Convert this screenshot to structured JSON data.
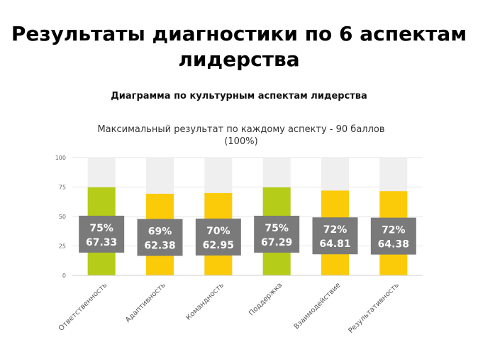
{
  "page": {
    "title_line1": "Результаты диагностики по 6 аспектам",
    "title_line2": "лидерства"
  },
  "chart_data": {
    "type": "bar",
    "title": "Диаграмма по культурным аспектам лидерства",
    "subtitle_line1": "Максимальный результат по каждому аспекту - 90 баллов",
    "subtitle_line2": "(100%)",
    "categories": [
      "Ответственность",
      "Адаптивность",
      "Командность",
      "Поддержка",
      "Взаимодействие",
      "Результативность"
    ],
    "values": [
      67.33,
      62.38,
      62.95,
      67.29,
      64.81,
      64.38
    ],
    "max_score": 90,
    "percent_labels": [
      "75%",
      "69%",
      "70%",
      "75%",
      "72%",
      "72%"
    ],
    "score_labels": [
      "67.33",
      "62.38",
      "62.95",
      "67.29",
      "64.81",
      "64.38"
    ],
    "ylim": [
      0,
      100
    ],
    "yticks": [
      "0",
      "25",
      "50",
      "75",
      "100"
    ],
    "xlabel": "",
    "ylabel": "",
    "grid": true,
    "background_bar_value": 100,
    "bar_colors": [
      "#b5cc18",
      "#fbcb0a",
      "#fbcb0a",
      "#b5cc18",
      "#fbcb0a",
      "#fbcb0a"
    ],
    "background_bar_color": "#efefef",
    "label_box_color": "#7a7a7a"
  }
}
